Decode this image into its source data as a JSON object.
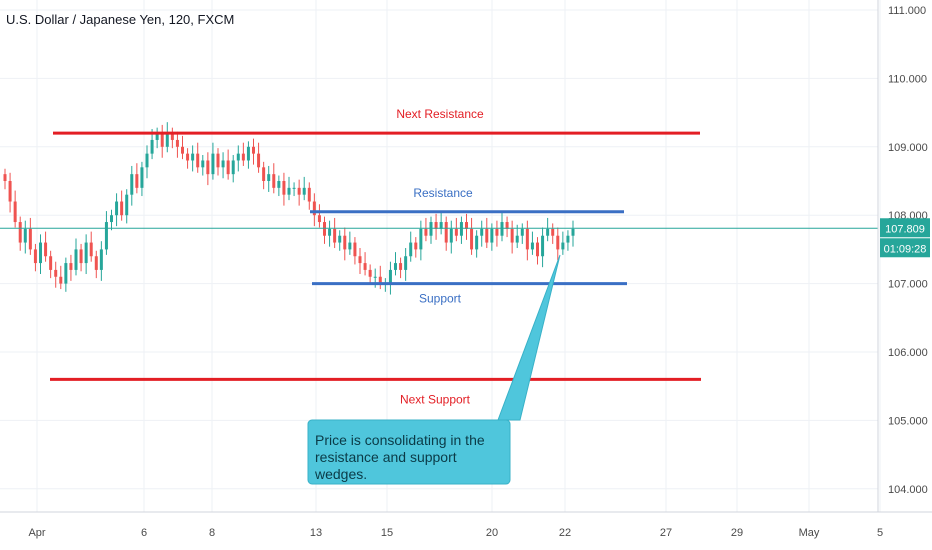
{
  "header": {
    "title": "U.S. Dollar / Japanese Yen, 120, FXCM"
  },
  "chart_data": {
    "type": "candlestick",
    "title": "U.S. Dollar / Japanese Yen, 120, FXCM",
    "ylim": [
      103.8,
      111.1
    ],
    "y_ticks": [
      "111.000",
      "110.000",
      "109.000",
      "108.000",
      "107.000",
      "106.000",
      "105.000",
      "104.000"
    ],
    "x_ticks": [
      "Apr",
      "6",
      "8",
      "13",
      "15",
      "20",
      "22",
      "27",
      "29",
      "May",
      "5"
    ],
    "last_price": "107.809",
    "countdown": "01:09:28",
    "colors": {
      "up": "#26a69a",
      "down": "#ef5350",
      "resistance_major": "#e31e24",
      "range": "#3a6fc4",
      "callout": "#4fc6dc"
    },
    "levels": [
      {
        "label": "Next Resistance",
        "value": 109.2,
        "color": "#e31e24"
      },
      {
        "label": "Resistance",
        "value": 108.05,
        "color": "#3a6fc4"
      },
      {
        "label": "Support",
        "value": 107.0,
        "color": "#3a6fc4"
      },
      {
        "label": "Next Support",
        "value": 105.6,
        "color": "#e31e24"
      }
    ],
    "candles_close": [
      108.5,
      108.2,
      107.9,
      107.6,
      107.8,
      107.5,
      107.3,
      107.6,
      107.4,
      107.2,
      107.1,
      107.0,
      107.3,
      107.2,
      107.5,
      107.3,
      107.6,
      107.4,
      107.2,
      107.5,
      107.9,
      108.0,
      108.2,
      108.0,
      108.3,
      108.6,
      108.4,
      108.7,
      108.9,
      109.1,
      109.2,
      109.0,
      109.2,
      109.1,
      109.0,
      108.9,
      108.8,
      108.9,
      108.7,
      108.8,
      108.6,
      108.9,
      108.7,
      108.8,
      108.6,
      108.8,
      108.9,
      108.8,
      109.0,
      108.9,
      108.7,
      108.5,
      108.6,
      108.4,
      108.5,
      108.3,
      108.4,
      108.4,
      108.3,
      108.4,
      108.2,
      108.0,
      107.9,
      107.7,
      107.8,
      107.6,
      107.7,
      107.5,
      107.6,
      107.4,
      107.3,
      107.2,
      107.1,
      107.1,
      107.0,
      107.0,
      107.2,
      107.3,
      107.2,
      107.4,
      107.6,
      107.5,
      107.8,
      107.7,
      107.9,
      107.8,
      107.9,
      107.6,
      107.8,
      107.7,
      107.9,
      107.8,
      107.5,
      107.7,
      107.8,
      107.6,
      107.8,
      107.7,
      107.9,
      107.8,
      107.6,
      107.7,
      107.8,
      107.5,
      107.6,
      107.4,
      107.7,
      107.8,
      107.7,
      107.5,
      107.6,
      107.7,
      107.8
    ],
    "annotation": "Price is consolidating in the resistance and support wedges."
  }
}
